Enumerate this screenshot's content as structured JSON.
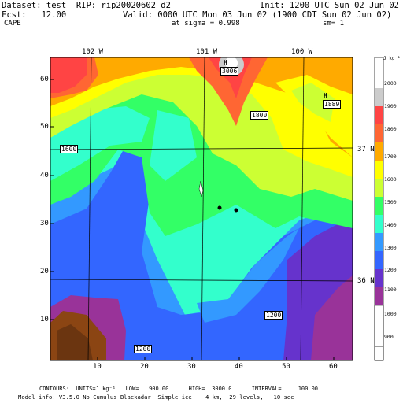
{
  "header": {
    "dataset": "Dataset: test  RIP: rip20020602 d2",
    "init": "Init: 1200 UTC Sun 02 Jun 02",
    "fcst": "Fcst:   12.00",
    "valid": "Valid: 0000 UTC Mon 03 Jun 02 (1900 CDT Sun 02 Jun 02)",
    "field": "CAPE",
    "sigma": "at sigma = 0.998",
    "sm": "sm= 1"
  },
  "longitudes": [
    "102 W",
    "101 W",
    "100 W"
  ],
  "latitudes": [
    "37 N",
    "36 N"
  ],
  "y_ticks": [
    "60",
    "50",
    "40",
    "30",
    "20",
    "10"
  ],
  "x_ticks": [
    "10",
    "20",
    "30",
    "40",
    "50",
    "60"
  ],
  "contour_labels": [
    "1600",
    "1800",
    "1200",
    "1200"
  ],
  "high_markers": [
    {
      "letter": "H",
      "value": "3006"
    },
    {
      "letter": "H",
      "value": "1889"
    }
  ],
  "colorbar": {
    "units": "J kg⁻¹",
    "levels": [
      "900",
      "1000",
      "1100",
      "1200",
      "1300",
      "1400",
      "1500",
      "1600",
      "1700",
      "1800",
      "1900",
      "2000"
    ],
    "colors": [
      "#ffffff",
      "#993399",
      "#6633cc",
      "#3366ff",
      "#3399ff",
      "#33ffcc",
      "#33ff66",
      "#ccff33",
      "#ffff00",
      "#ffaa00",
      "#ff6633",
      "#ff4444",
      "#cccccc"
    ]
  },
  "footer": {
    "line1": "CONTOURS:  UNITS=J kg⁻¹   LOW=   900.00      HIGH=  3000.0      INTERVAL=     100.00",
    "line2": "Model info: V3.5.0 No Cumulus Blackadar  Simple ice    4 km,  29 levels,   10 sec"
  }
}
